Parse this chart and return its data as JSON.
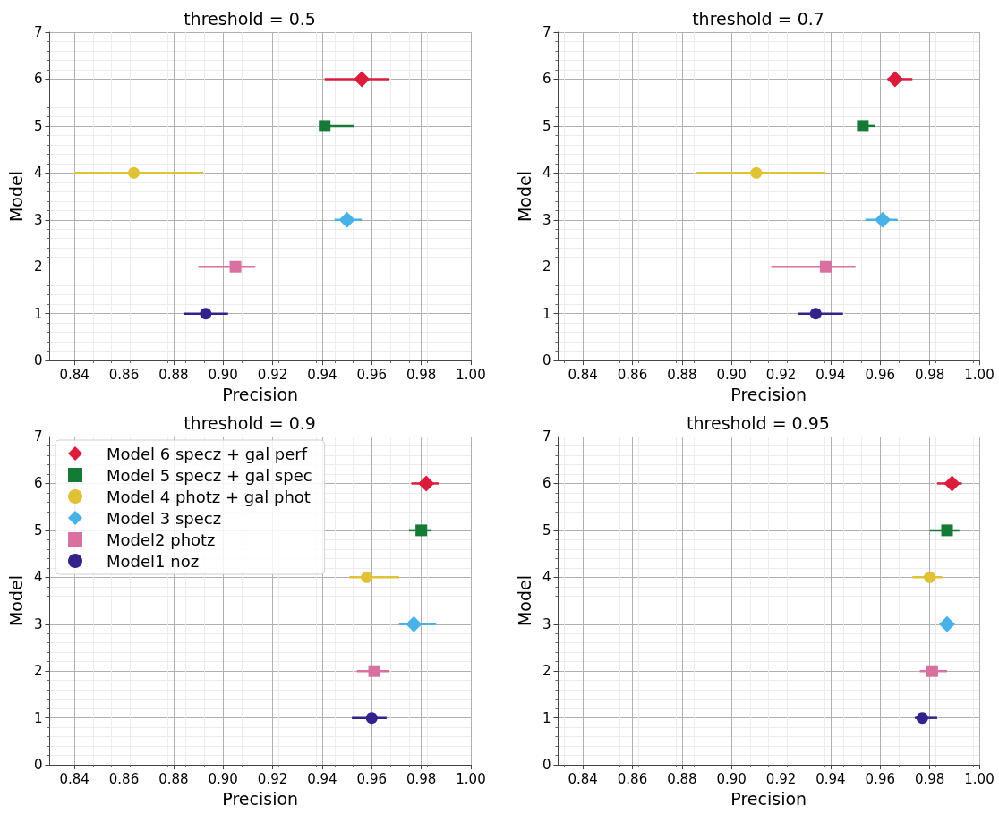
{
  "chart_data": [
    {
      "type": "scatter",
      "title": "threshold = 0.5",
      "xlabel": "Precision",
      "ylabel": "Model",
      "xlim": [
        0.83,
        1.0
      ],
      "xticks": [
        {
          "value": 0.84,
          "label": "0.84"
        },
        {
          "value": 0.86,
          "label": "0.86"
        },
        {
          "value": 0.88,
          "label": "0.88"
        },
        {
          "value": 0.9,
          "label": "0.90"
        },
        {
          "value": 0.92,
          "label": "0.92"
        },
        {
          "value": 0.94,
          "label": "0.94"
        },
        {
          "value": 0.96,
          "label": "0.96"
        },
        {
          "value": 0.98,
          "label": "0.98"
        },
        {
          "value": 1.0,
          "label": "1.00"
        }
      ],
      "ylim": [
        0,
        7
      ],
      "yticks": [
        0,
        1,
        2,
        3,
        4,
        5,
        6,
        7
      ],
      "grid": true,
      "legend": false,
      "series": [
        {
          "color": "#dc1c3c",
          "marker": "diamond",
          "x": [
            0.956
          ],
          "values": [
            6
          ],
          "xerrors": [
            [
              0.941,
              0.967
            ]
          ]
        },
        {
          "color": "#157a35",
          "marker": "square",
          "x": [
            0.941
          ],
          "values": [
            5
          ],
          "xerrors": [
            [
              0.939,
              0.953
            ]
          ]
        },
        {
          "color": "#e0c236",
          "marker": "circle",
          "x": [
            0.864
          ],
          "values": [
            4
          ],
          "xerrors": [
            [
              0.84,
              0.892
            ]
          ]
        },
        {
          "color": "#48b2e8",
          "marker": "diamond",
          "x": [
            0.95
          ],
          "values": [
            3
          ],
          "xerrors": [
            [
              0.945,
              0.956
            ]
          ]
        },
        {
          "color": "#d870a0",
          "marker": "square",
          "x": [
            0.905
          ],
          "values": [
            2
          ],
          "xerrors": [
            [
              0.89,
              0.913
            ]
          ]
        },
        {
          "color": "#33228c",
          "marker": "circle",
          "x": [
            0.893
          ],
          "values": [
            1
          ],
          "xerrors": [
            [
              0.884,
              0.902
            ]
          ]
        }
      ]
    },
    {
      "type": "scatter",
      "title": "threshold = 0.7",
      "xlabel": "Precision",
      "ylabel": "Model",
      "xlim": [
        0.83,
        1.0
      ],
      "xticks": [
        {
          "value": 0.84,
          "label": "0.84"
        },
        {
          "value": 0.86,
          "label": "0.86"
        },
        {
          "value": 0.88,
          "label": "0.88"
        },
        {
          "value": 0.9,
          "label": "0.90"
        },
        {
          "value": 0.92,
          "label": "0.92"
        },
        {
          "value": 0.94,
          "label": "0.94"
        },
        {
          "value": 0.96,
          "label": "0.96"
        },
        {
          "value": 0.98,
          "label": "0.98"
        },
        {
          "value": 1.0,
          "label": "1.00"
        }
      ],
      "ylim": [
        0,
        7
      ],
      "yticks": [
        0,
        1,
        2,
        3,
        4,
        5,
        6,
        7
      ],
      "grid": true,
      "legend": false,
      "series": [
        {
          "color": "#dc1c3c",
          "marker": "diamond",
          "x": [
            0.966
          ],
          "values": [
            6
          ],
          "xerrors": [
            [
              0.963,
              0.973
            ]
          ]
        },
        {
          "color": "#157a35",
          "marker": "square",
          "x": [
            0.953
          ],
          "values": [
            5
          ],
          "xerrors": [
            [
              0.951,
              0.958
            ]
          ]
        },
        {
          "color": "#e0c236",
          "marker": "circle",
          "x": [
            0.91
          ],
          "values": [
            4
          ],
          "xerrors": [
            [
              0.886,
              0.938
            ]
          ]
        },
        {
          "color": "#48b2e8",
          "marker": "diamond",
          "x": [
            0.961
          ],
          "values": [
            3
          ],
          "xerrors": [
            [
              0.954,
              0.967
            ]
          ]
        },
        {
          "color": "#d870a0",
          "marker": "square",
          "x": [
            0.938
          ],
          "values": [
            2
          ],
          "xerrors": [
            [
              0.916,
              0.95
            ]
          ]
        },
        {
          "color": "#33228c",
          "marker": "circle",
          "x": [
            0.934
          ],
          "values": [
            1
          ],
          "xerrors": [
            [
              0.927,
              0.945
            ]
          ]
        }
      ]
    },
    {
      "type": "scatter",
      "title": "threshold = 0.9",
      "xlabel": "Precision",
      "ylabel": "Model",
      "xlim": [
        0.83,
        1.0
      ],
      "xticks": [
        {
          "value": 0.84,
          "label": "0.84"
        },
        {
          "value": 0.86,
          "label": "0.86"
        },
        {
          "value": 0.88,
          "label": "0.88"
        },
        {
          "value": 0.9,
          "label": "0.90"
        },
        {
          "value": 0.92,
          "label": "0.92"
        },
        {
          "value": 0.94,
          "label": "0.94"
        },
        {
          "value": 0.96,
          "label": "0.96"
        },
        {
          "value": 0.98,
          "label": "0.98"
        },
        {
          "value": 1.0,
          "label": "1.00"
        }
      ],
      "ylim": [
        0,
        7
      ],
      "yticks": [
        0,
        1,
        2,
        3,
        4,
        5,
        6,
        7
      ],
      "grid": true,
      "legend": "top left",
      "series": [
        {
          "name": "Model 6 specz + gal perf",
          "color": "#dc1c3c",
          "marker": "diamond",
          "x": [
            0.982
          ],
          "values": [
            6
          ],
          "xerrors": [
            [
              0.976,
              0.987
            ]
          ]
        },
        {
          "name": "Model 5 specz + gal spec",
          "color": "#157a35",
          "marker": "square",
          "x": [
            0.98
          ],
          "values": [
            5
          ],
          "xerrors": [
            [
              0.975,
              0.984
            ]
          ]
        },
        {
          "name": "Model 4 photz + gal phot",
          "color": "#e0c236",
          "marker": "circle",
          "x": [
            0.958
          ],
          "values": [
            4
          ],
          "xerrors": [
            [
              0.951,
              0.971
            ]
          ]
        },
        {
          "name": "Model 3 specz",
          "color": "#48b2e8",
          "marker": "diamond",
          "x": [
            0.977
          ],
          "values": [
            3
          ],
          "xerrors": [
            [
              0.971,
              0.986
            ]
          ]
        },
        {
          "name": "Model2 photz",
          "color": "#d870a0",
          "marker": "square",
          "x": [
            0.961
          ],
          "values": [
            2
          ],
          "xerrors": [
            [
              0.954,
              0.967
            ]
          ]
        },
        {
          "name": "Model1 noz",
          "color": "#33228c",
          "marker": "circle",
          "x": [
            0.96
          ],
          "values": [
            1
          ],
          "xerrors": [
            [
              0.952,
              0.966
            ]
          ]
        }
      ]
    },
    {
      "type": "scatter",
      "title": "threshold = 0.95",
      "xlabel": "Precision",
      "ylabel": "Model",
      "xlim": [
        0.83,
        1.0
      ],
      "xticks": [
        {
          "value": 0.84,
          "label": "0.84"
        },
        {
          "value": 0.86,
          "label": "0.86"
        },
        {
          "value": 0.88,
          "label": "0.88"
        },
        {
          "value": 0.9,
          "label": "0.90"
        },
        {
          "value": 0.92,
          "label": "0.92"
        },
        {
          "value": 0.94,
          "label": "0.94"
        },
        {
          "value": 0.96,
          "label": "0.96"
        },
        {
          "value": 0.98,
          "label": "0.98"
        },
        {
          "value": 1.0,
          "label": "1.00"
        }
      ],
      "ylim": [
        0,
        7
      ],
      "yticks": [
        0,
        1,
        2,
        3,
        4,
        5,
        6,
        7
      ],
      "grid": true,
      "legend": false,
      "series": [
        {
          "color": "#dc1c3c",
          "marker": "diamond",
          "x": [
            0.989
          ],
          "values": [
            6
          ],
          "xerrors": [
            [
              0.983,
              0.993
            ]
          ]
        },
        {
          "color": "#157a35",
          "marker": "square",
          "x": [
            0.987
          ],
          "values": [
            5
          ],
          "xerrors": [
            [
              0.98,
              0.992
            ]
          ]
        },
        {
          "color": "#e0c236",
          "marker": "circle",
          "x": [
            0.98
          ],
          "values": [
            4
          ],
          "xerrors": [
            [
              0.973,
              0.985
            ]
          ]
        },
        {
          "color": "#48b2e8",
          "marker": "diamond",
          "x": [
            0.987
          ],
          "values": [
            3
          ],
          "xerrors": [
            null
          ]
        },
        {
          "color": "#d870a0",
          "marker": "square",
          "x": [
            0.981
          ],
          "values": [
            2
          ],
          "xerrors": [
            [
              0.976,
              0.987
            ]
          ]
        },
        {
          "color": "#33228c",
          "marker": "circle",
          "x": [
            0.977
          ],
          "values": [
            1
          ],
          "xerrors": [
            [
              0.974,
              0.983
            ]
          ]
        }
      ]
    }
  ]
}
